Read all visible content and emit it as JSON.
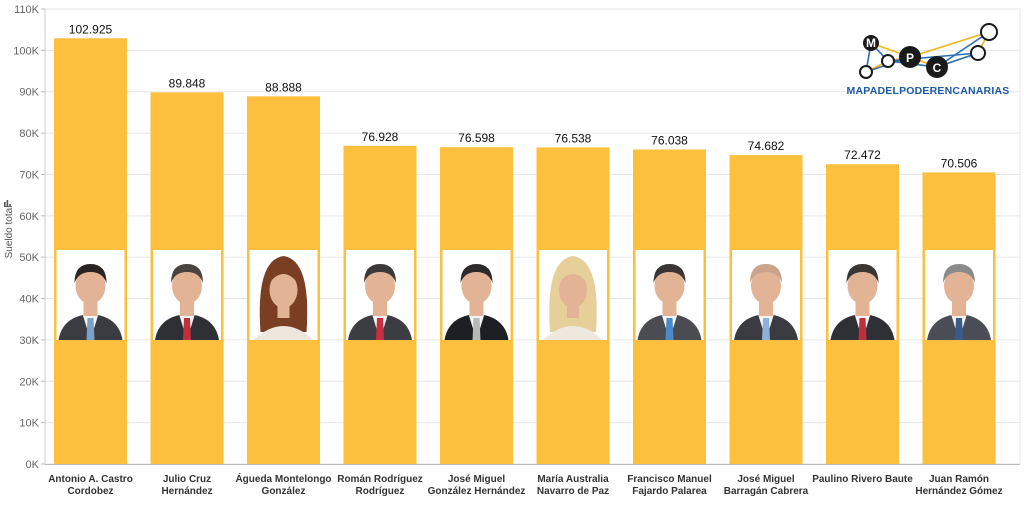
{
  "chart_data": {
    "type": "bar",
    "ylabel": "Sueldo total",
    "ylim": [
      0,
      110000
    ],
    "yticks": [
      {
        "value": 0,
        "label": "0K"
      },
      {
        "value": 10000,
        "label": "10K"
      },
      {
        "value": 20000,
        "label": "20K"
      },
      {
        "value": 30000,
        "label": "30K"
      },
      {
        "value": 40000,
        "label": "40K"
      },
      {
        "value": 50000,
        "label": "50K"
      },
      {
        "value": 60000,
        "label": "60K"
      },
      {
        "value": 70000,
        "label": "70K"
      },
      {
        "value": 80000,
        "label": "80K"
      },
      {
        "value": 90000,
        "label": "90K"
      },
      {
        "value": 100000,
        "label": "100K"
      },
      {
        "value": 110000,
        "label": "110K"
      }
    ],
    "grid": true,
    "bar_color": "#fcc03e",
    "categories": [
      [
        "Antonio A. Castro",
        "Cordobez"
      ],
      [
        "Julio Cruz",
        "Hernández"
      ],
      [
        "Águeda Montelongo",
        "González"
      ],
      [
        "Román Rodríguez",
        "Rodríguez"
      ],
      [
        "José Miguel",
        "González Hernández"
      ],
      [
        "María Australia",
        "Navarro de Paz"
      ],
      [
        "Francisco Manuel",
        "Fajardo Palarea"
      ],
      [
        "José Miguel",
        "Barragán Cabrera"
      ],
      [
        "Paulino Rivero Baute"
      ],
      [
        "Juan Ramón",
        "Hernández Gómez"
      ]
    ],
    "values": [
      102925,
      89848,
      88888,
      76928,
      76598,
      76538,
      76038,
      74682,
      72472,
      70506
    ],
    "value_labels": [
      "102.925",
      "89.848",
      "88.888",
      "76.928",
      "76.598",
      "76.538",
      "76.038",
      "74.682",
      "72.472",
      "70.506"
    ],
    "portraits": [
      {
        "gender": "m",
        "hair": "#2a2522",
        "suit": "#3a3c42",
        "tie": "#7aa2c8"
      },
      {
        "gender": "m",
        "hair": "#4a4440",
        "suit": "#2e3036",
        "tie": "#c0303a"
      },
      {
        "gender": "f",
        "hair": "#7a3e22",
        "suit": "#ede6dc",
        "tie": "#ede6dc"
      },
      {
        "gender": "m",
        "hair": "#3a3838",
        "suit": "#3b3d43",
        "tie": "#c83040"
      },
      {
        "gender": "m",
        "hair": "#2c2a2a",
        "suit": "#1e1f24",
        "tie": "#b8b8b8"
      },
      {
        "gender": "f",
        "hair": "#e6cf98",
        "suit": "#efe8de",
        "tie": "#efe8de"
      },
      {
        "gender": "m",
        "hair": "#3a3434",
        "suit": "#4a4c52",
        "tie": "#4a8ac8"
      },
      {
        "gender": "m",
        "hair": "#c9a48a",
        "suit": "#3a3c42",
        "tie": "#8fb0d8"
      },
      {
        "gender": "m",
        "hair": "#3a3634",
        "suit": "#2e3036",
        "tie": "#c0303a"
      },
      {
        "gender": "m",
        "hair": "#8a8a8a",
        "suit": "#4a4d55",
        "tie": "#3a5a8a"
      }
    ]
  },
  "logo": {
    "text": "MAPADELPODERENCANARIAS",
    "letters": [
      "M",
      "P",
      "C"
    ],
    "colors": {
      "lines_yellow": "#f2b61c",
      "lines_blue": "#2d6fb8",
      "nodes": "#1a1a1a",
      "text": "#1e5aa8"
    }
  },
  "icons": {
    "axis_marker": "bar-chart-icon"
  }
}
